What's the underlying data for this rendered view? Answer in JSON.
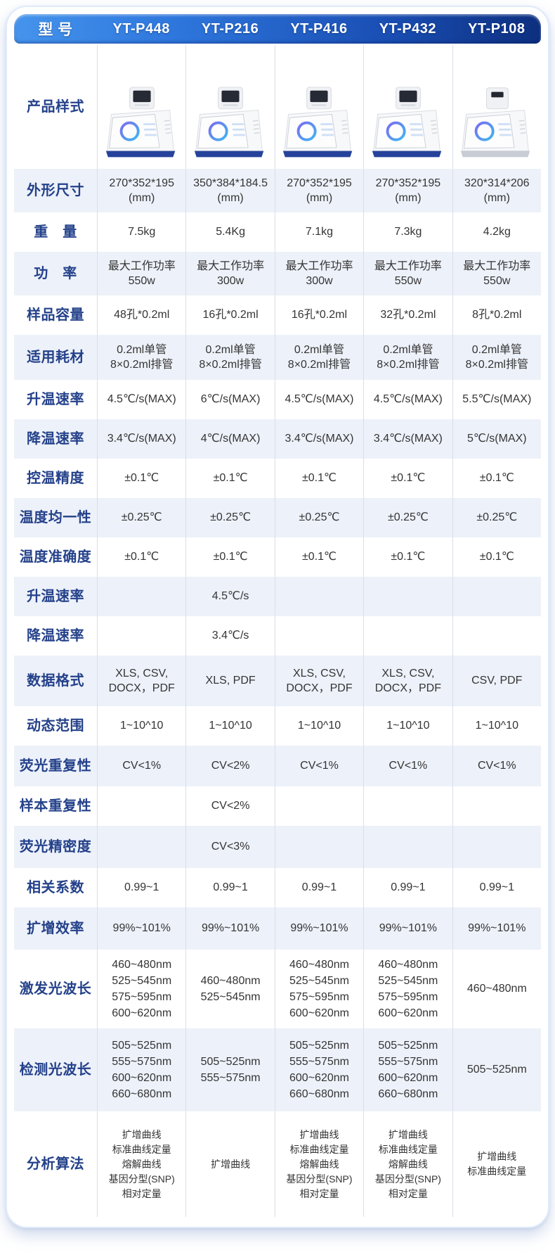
{
  "colors": {
    "header_gradient_start": "#4594ec",
    "header_gradient_end": "#0d2f7f",
    "row_label_color": "#24418a",
    "alt_row_bg": "#edf1f9",
    "cell_border": "#d9dee9",
    "machine_base_blue": "#26439b",
    "value_text": "#343434"
  },
  "header": {
    "label": "型 号",
    "models": [
      "YT-P448",
      "YT-P216",
      "YT-P416",
      "YT-P432",
      "YT-P108"
    ]
  },
  "product_row": {
    "label": "产品样式",
    "images": [
      {
        "name": "YT-P448 荧光定量PCR仪实物图",
        "variant": "lid"
      },
      {
        "name": "YT-P216 荧光定量PCR仪实物图",
        "variant": "lid"
      },
      {
        "name": "YT-P416 荧光定量PCR仪实物图",
        "variant": "lid"
      },
      {
        "name": "YT-P432 荧光定量PCR仪实物图",
        "variant": "lid"
      },
      {
        "name": "YT-P108 荧光定量PCR仪实物图",
        "variant": "slot"
      }
    ]
  },
  "rows": [
    {
      "label": "外形尺寸",
      "min_h": 62,
      "values": [
        "270*352*195\n(mm)",
        "350*384*184.5\n(mm)",
        "270*352*195\n(mm)",
        "270*352*195\n(mm)",
        "320*314*206\n(mm)"
      ]
    },
    {
      "label": "重　量",
      "min_h": 56,
      "values": [
        "7.5kg",
        "5.4Kg",
        "7.1kg",
        "7.3kg",
        "4.2kg"
      ]
    },
    {
      "label": "功　率",
      "min_h": 62,
      "values": [
        "最大工作功率\n550w",
        "最大工作功率\n300w",
        "最大工作功率\n300w",
        "最大工作功率\n550w",
        "最大工作功率\n550w"
      ]
    },
    {
      "label": "样品容量",
      "min_h": 56,
      "values": [
        "48孔*0.2ml",
        "16孔*0.2ml",
        "16孔*0.2ml",
        "32孔*0.2ml",
        "8孔*0.2ml"
      ]
    },
    {
      "label": "适用耗材",
      "min_h": 64,
      "values": [
        "0.2ml单管\n8×0.2ml排管",
        "0.2ml单管\n8×0.2ml排管",
        "0.2ml单管\n8×0.2ml排管",
        "0.2ml单管\n8×0.2ml排管",
        "0.2ml单管\n8×0.2ml排管"
      ]
    },
    {
      "label": "升温速率",
      "min_h": 56,
      "values": [
        "4.5℃/s(MAX)",
        "6℃/s(MAX)",
        "4.5℃/s(MAX)",
        "4.5℃/s(MAX)",
        "5.5℃/s(MAX)"
      ]
    },
    {
      "label": "降温速率",
      "min_h": 56,
      "values": [
        "3.4℃/s(MAX)",
        "4℃/s(MAX)",
        "3.4℃/s(MAX)",
        "3.4℃/s(MAX)",
        "5℃/s(MAX)"
      ]
    },
    {
      "label": "控温精度",
      "min_h": 56,
      "values": [
        "±0.1℃",
        "±0.1℃",
        "±0.1℃",
        "±0.1℃",
        "±0.1℃"
      ]
    },
    {
      "label": "温度均一性",
      "min_h": 56,
      "values": [
        "±0.25℃",
        "±0.25℃",
        "±0.25℃",
        "±0.25℃",
        "±0.25℃"
      ]
    },
    {
      "label": "温度准确度",
      "min_h": 56,
      "values": [
        "±0.1℃",
        "±0.1℃",
        "±0.1℃",
        "±0.1℃",
        "±0.1℃"
      ]
    },
    {
      "label": "升温速率",
      "min_h": 56,
      "values": [
        "",
        "4.5℃/s",
        "",
        "",
        ""
      ]
    },
    {
      "label": "降温速率",
      "min_h": 56,
      "values": [
        "",
        "3.4℃/s",
        "",
        "",
        ""
      ]
    },
    {
      "label": "数据格式",
      "min_h": 72,
      "values": [
        "XLS, CSV,\nDOCX，PDF",
        "XLS, PDF",
        "XLS, CSV,\nDOCX，PDF",
        "XLS, CSV,\nDOCX，PDF",
        "CSV, PDF"
      ]
    },
    {
      "label": "动态范围",
      "min_h": 56,
      "values": [
        "1~10^10",
        "1~10^10",
        "1~10^10",
        "1~10^10",
        "1~10^10"
      ]
    },
    {
      "label": "荧光重复性",
      "min_h": 58,
      "values": [
        "CV<1%",
        "CV<2%",
        "CV<1%",
        "CV<1%",
        "CV<1%"
      ]
    },
    {
      "label": "样本重复性",
      "min_h": 56,
      "values": [
        "",
        "CV<2%",
        "",
        "",
        ""
      ]
    },
    {
      "label": "荧光精密度",
      "min_h": 60,
      "values": [
        "",
        "CV<3%",
        "",
        "",
        ""
      ]
    },
    {
      "label": "相关系数",
      "min_h": 56,
      "values": [
        "0.99~1",
        "0.99~1",
        "0.99~1",
        "0.99~1",
        "0.99~1"
      ]
    },
    {
      "label": "扩增效率",
      "min_h": 60,
      "values": [
        "99%~101%",
        "99%~101%",
        "99%~101%",
        "99%~101%",
        "99%~101%"
      ]
    },
    {
      "label": "激发光波长",
      "min_h": 112,
      "cls": "wave",
      "values": [
        "460~480nm\n525~545nm\n575~595nm\n600~620nm",
        "460~480nm\n525~545nm",
        "460~480nm\n525~545nm\n575~595nm\n600~620nm",
        "460~480nm\n525~545nm\n575~595nm\n600~620nm",
        "460~480nm"
      ]
    },
    {
      "label": "检测光波长",
      "min_h": 118,
      "cls": "wave",
      "values": [
        "505~525nm\n555~575nm\n600~620nm\n660~680nm",
        "505~525nm\n555~575nm",
        "505~525nm\n555~575nm\n600~620nm\n660~680nm",
        "505~525nm\n555~575nm\n600~620nm\n660~680nm",
        "505~525nm"
      ]
    },
    {
      "label": "分析算法",
      "min_h": 150,
      "cls": "small",
      "values": [
        "扩增曲线\n标准曲线定量\n熔解曲线\n基因分型(SNP)\n相对定量",
        "扩增曲线",
        "扩增曲线\n标准曲线定量\n熔解曲线\n基因分型(SNP)\n相对定量",
        "扩增曲线\n标准曲线定量\n熔解曲线\n基因分型(SNP)\n相对定量",
        "扩增曲线\n标准曲线定量"
      ]
    }
  ]
}
